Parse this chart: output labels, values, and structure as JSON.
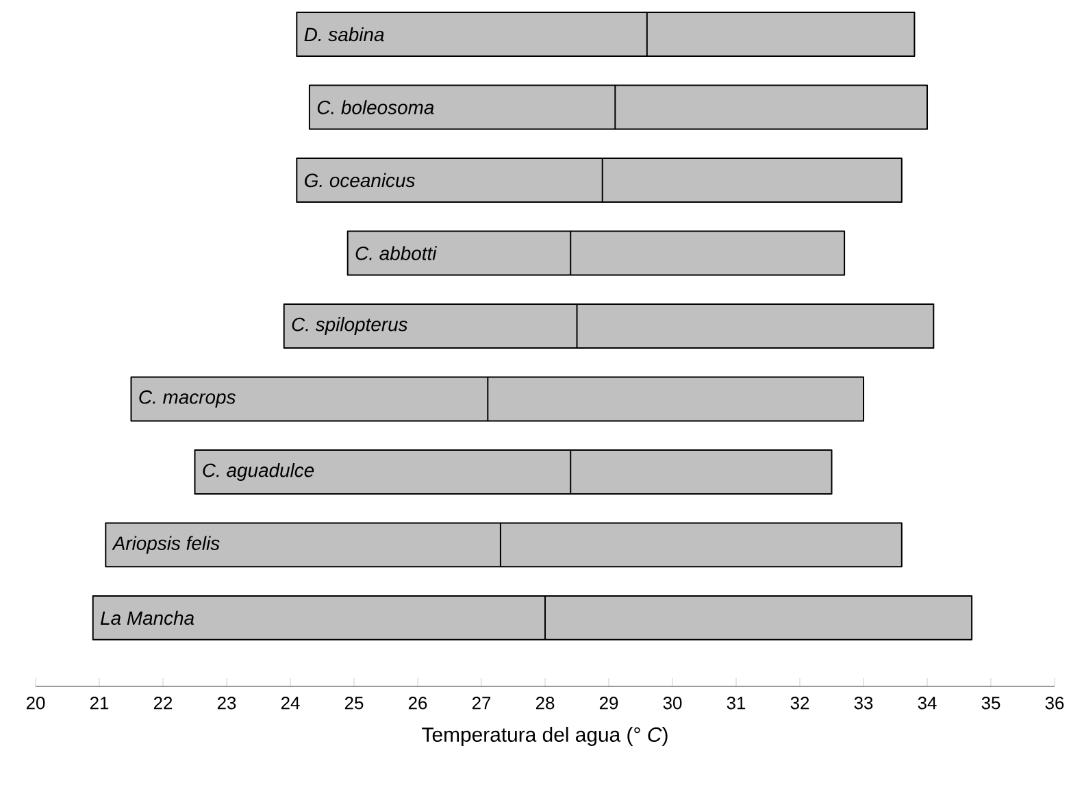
{
  "chart_data": {
    "type": "box",
    "orientation": "horizontal",
    "color": "#c0c0c0",
    "categories": [
      "D. sabina",
      "C. boleosoma",
      "G. oceanicus",
      "C. abbotti",
      "C. spilopterus",
      "C. macrops",
      "C. aguadulce",
      "Ariopsis felis",
      "La Mancha"
    ],
    "boxes": [
      {
        "low": 24.1,
        "q1": 24.1,
        "median": 29.6,
        "q3": 33.8,
        "high": 33.8
      },
      {
        "low": 24.3,
        "q1": 24.3,
        "median": 29.1,
        "q3": 34.0,
        "high": 34.0
      },
      {
        "low": 24.1,
        "q1": 24.1,
        "median": 28.9,
        "q3": 33.6,
        "high": 33.6
      },
      {
        "low": 24.9,
        "q1": 24.9,
        "median": 28.4,
        "q3": 32.7,
        "high": 32.7
      },
      {
        "low": 23.9,
        "q1": 23.9,
        "median": 28.5,
        "q3": 34.1,
        "high": 34.1
      },
      {
        "low": 21.5,
        "q1": 21.5,
        "median": 27.1,
        "q3": 33.0,
        "high": 33.0
      },
      {
        "low": 22.5,
        "q1": 22.5,
        "median": 28.4,
        "q3": 32.5,
        "high": 32.5
      },
      {
        "low": 21.1,
        "q1": 21.1,
        "median": 27.3,
        "q3": 33.6,
        "high": 33.6
      },
      {
        "low": 20.9,
        "q1": 20.9,
        "median": 28.0,
        "q3": 34.7,
        "high": 34.7
      }
    ],
    "xlim": [
      20,
      36
    ],
    "xticks": [
      20,
      21,
      22,
      23,
      24,
      25,
      26,
      27,
      28,
      29,
      30,
      31,
      32,
      33,
      34,
      35,
      36
    ],
    "xlabel": "Temperatura del agua (° *C*)"
  }
}
